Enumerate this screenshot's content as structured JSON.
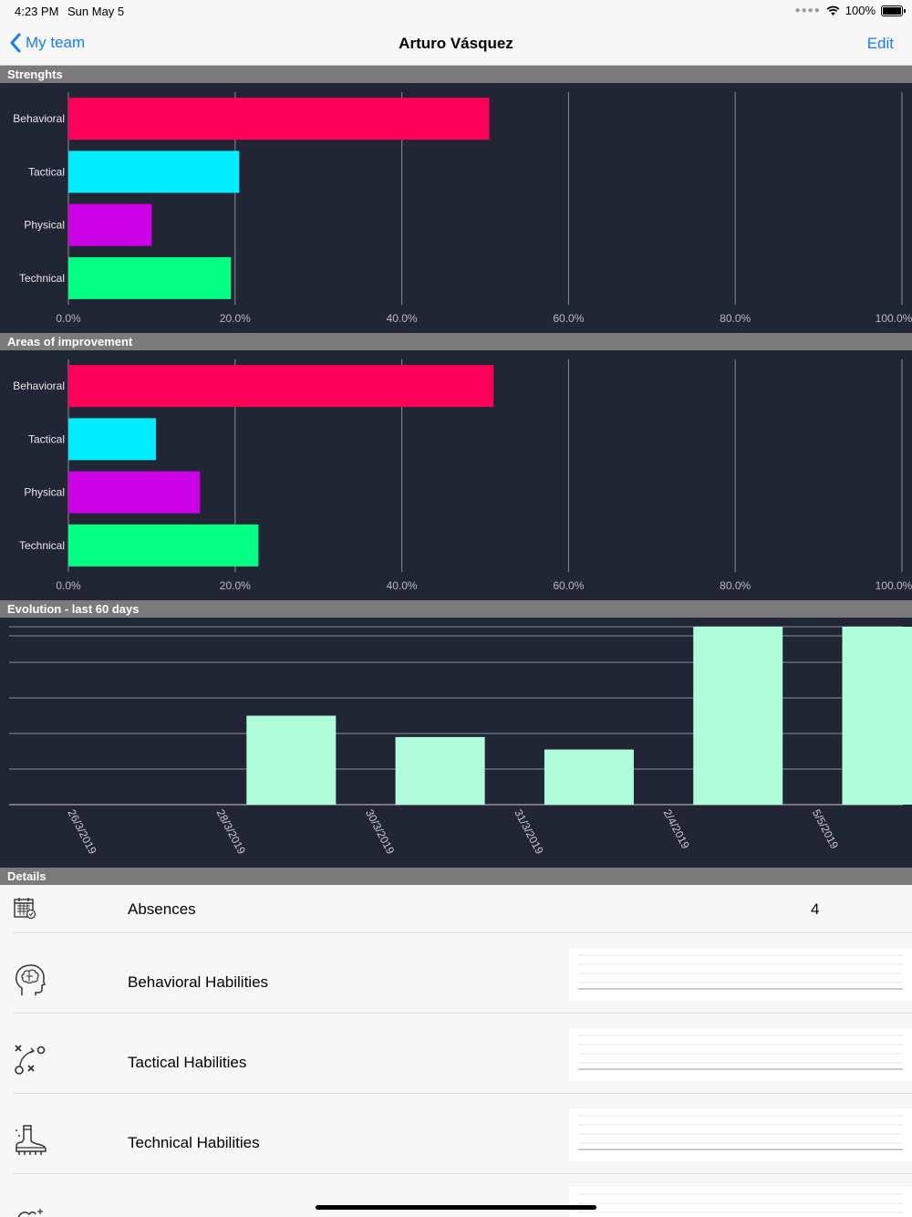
{
  "status_bar": {
    "time": "4:23 PM",
    "date": "Sun May 5",
    "battery": "100%"
  },
  "nav": {
    "back_label": "My team",
    "title": "Arturo Vásquez",
    "edit_label": "Edit"
  },
  "sections": {
    "strengths": "Strenghts",
    "improvement": "Areas of improvement",
    "evolution": "Evolution - last 60 days",
    "details": "Details"
  },
  "colors": {
    "behavioral": "#ff0058",
    "tactical": "#00eeff",
    "physical": "#cc00e6",
    "technical": "#00ff82",
    "evolution": "#b0fddc",
    "chart_bg": "#222634"
  },
  "chart_data": [
    {
      "type": "bar",
      "orientation": "horizontal",
      "categories": [
        "Behavioral",
        "Tactical",
        "Physical",
        "Technical"
      ],
      "values": [
        50.5,
        20.5,
        10.0,
        19.5
      ],
      "xlim": [
        0,
        100
      ],
      "x_ticks": [
        "0.0%",
        "20.0%",
        "40.0%",
        "60.0%",
        "80.0%",
        "100.0%"
      ],
      "grid": true
    },
    {
      "type": "bar",
      "orientation": "horizontal",
      "categories": [
        "Behavioral",
        "Tactical",
        "Physical",
        "Technical"
      ],
      "values": [
        51.0,
        10.5,
        15.8,
        22.8
      ],
      "xlim": [
        0,
        100
      ],
      "x_ticks": [
        "0.0%",
        "20.0%",
        "40.0%",
        "60.0%",
        "80.0%",
        "100.0%"
      ],
      "grid": true
    },
    {
      "type": "bar",
      "orientation": "vertical",
      "categories": [
        "26/3/2019",
        "28/3/2019",
        "30/3/2019",
        "31/3/2019",
        "2/4/2019",
        "5/5/2019"
      ],
      "values": [
        0,
        2.5,
        1.9,
        1.55,
        5,
        5
      ],
      "ylim": [
        0,
        5
      ],
      "grid": true
    }
  ],
  "details": [
    {
      "label": "Absences",
      "value": "4",
      "icon": "calendar-icon"
    },
    {
      "label": "Behavioral Habilities",
      "value": "",
      "icon": "brain-head-icon"
    },
    {
      "label": "Tactical Habilities",
      "value": "",
      "icon": "tactics-icon"
    },
    {
      "label": "Technical Habilities",
      "value": "",
      "icon": "soccer-boot-icon"
    }
  ]
}
